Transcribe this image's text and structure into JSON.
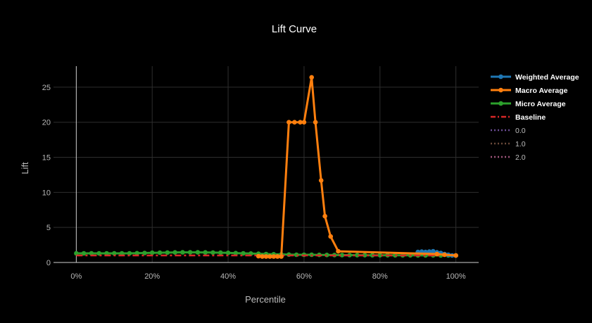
{
  "chart_data": {
    "type": "line",
    "title": "Lift Curve",
    "xlabel": "Percentile",
    "ylabel": "Lift",
    "xlim": [
      -0.06,
      1.06
    ],
    "ylim": [
      0,
      28
    ],
    "xtick_values": [
      0,
      0.2,
      0.4,
      0.6,
      0.8,
      1.0
    ],
    "xtick_labels": [
      "0%",
      "20%",
      "40%",
      "60%",
      "80%",
      "100%"
    ],
    "ytick_values": [
      0,
      5,
      10,
      15,
      20,
      25
    ],
    "ytick_labels": [
      "0",
      "5",
      "10",
      "15",
      "20",
      "25"
    ],
    "grid": true,
    "legend_position": "right",
    "series": [
      {
        "name": "Weighted Average",
        "color": "#1f77b4",
        "style": "solid",
        "markers": true,
        "x": [
          0.9,
          0.91,
          0.92,
          0.93,
          0.94,
          0.95,
          0.96,
          0.97,
          0.98,
          0.99,
          1.0
        ],
        "y": [
          1.5,
          1.55,
          1.5,
          1.55,
          1.6,
          1.45,
          1.35,
          1.2,
          1.1,
          1.0,
          1.0
        ]
      },
      {
        "name": "Macro Average",
        "color": "#ff7f0e",
        "style": "solid",
        "markers": true,
        "x": [
          0.48,
          0.49,
          0.5,
          0.51,
          0.52,
          0.53,
          0.54,
          0.56,
          0.575,
          0.59,
          0.6,
          0.62,
          0.63,
          0.645,
          0.655,
          0.67,
          0.69,
          0.95,
          0.97,
          1.0
        ],
        "y": [
          0.9,
          0.85,
          0.85,
          0.85,
          0.85,
          0.85,
          0.85,
          20.0,
          20.0,
          20.0,
          20.0,
          26.4,
          20.0,
          11.7,
          6.6,
          3.7,
          1.6,
          1.2,
          1.1,
          1.0
        ]
      },
      {
        "name": "Micro Average",
        "color": "#2ca02c",
        "style": "solid",
        "markers": true,
        "x": [
          0.0,
          0.02,
          0.04,
          0.06,
          0.08,
          0.1,
          0.12,
          0.14,
          0.16,
          0.18,
          0.2,
          0.22,
          0.24,
          0.26,
          0.28,
          0.3,
          0.32,
          0.34,
          0.36,
          0.38,
          0.4,
          0.42,
          0.44,
          0.46,
          0.48,
          0.5,
          0.52,
          0.54,
          0.56,
          0.58,
          0.6,
          0.62,
          0.64,
          0.66,
          0.68,
          0.7,
          0.72,
          0.74,
          0.76,
          0.78,
          0.8,
          0.82,
          0.84,
          0.86,
          0.88,
          0.9,
          0.92,
          0.94,
          0.96,
          0.98,
          1.0
        ],
        "y": [
          1.3,
          1.3,
          1.3,
          1.3,
          1.3,
          1.3,
          1.3,
          1.3,
          1.32,
          1.35,
          1.38,
          1.4,
          1.42,
          1.44,
          1.45,
          1.45,
          1.45,
          1.44,
          1.42,
          1.4,
          1.37,
          1.33,
          1.3,
          1.27,
          1.24,
          1.2,
          1.17,
          1.15,
          1.12,
          1.1,
          1.1,
          1.1,
          1.08,
          1.07,
          1.06,
          1.05,
          1.05,
          1.04,
          1.04,
          1.03,
          1.03,
          1.03,
          1.02,
          1.02,
          1.02,
          1.01,
          1.01,
          1.01,
          1.0,
          1.0,
          1.0
        ]
      },
      {
        "name": "Baseline",
        "color": "#d62728",
        "style": "dashdot",
        "markers": false,
        "x": [
          0.0,
          1.0
        ],
        "y": [
          1.0,
          1.0
        ]
      },
      {
        "name": "0.0",
        "color": "#6a4c93",
        "style": "dot",
        "markers": false,
        "x": [],
        "y": []
      },
      {
        "name": "1.0",
        "color": "#6b4a3a",
        "style": "dot",
        "markers": false,
        "x": [],
        "y": []
      },
      {
        "name": "2.0",
        "color": "#a0567c",
        "style": "dot",
        "markers": false,
        "x": [],
        "y": []
      }
    ]
  }
}
